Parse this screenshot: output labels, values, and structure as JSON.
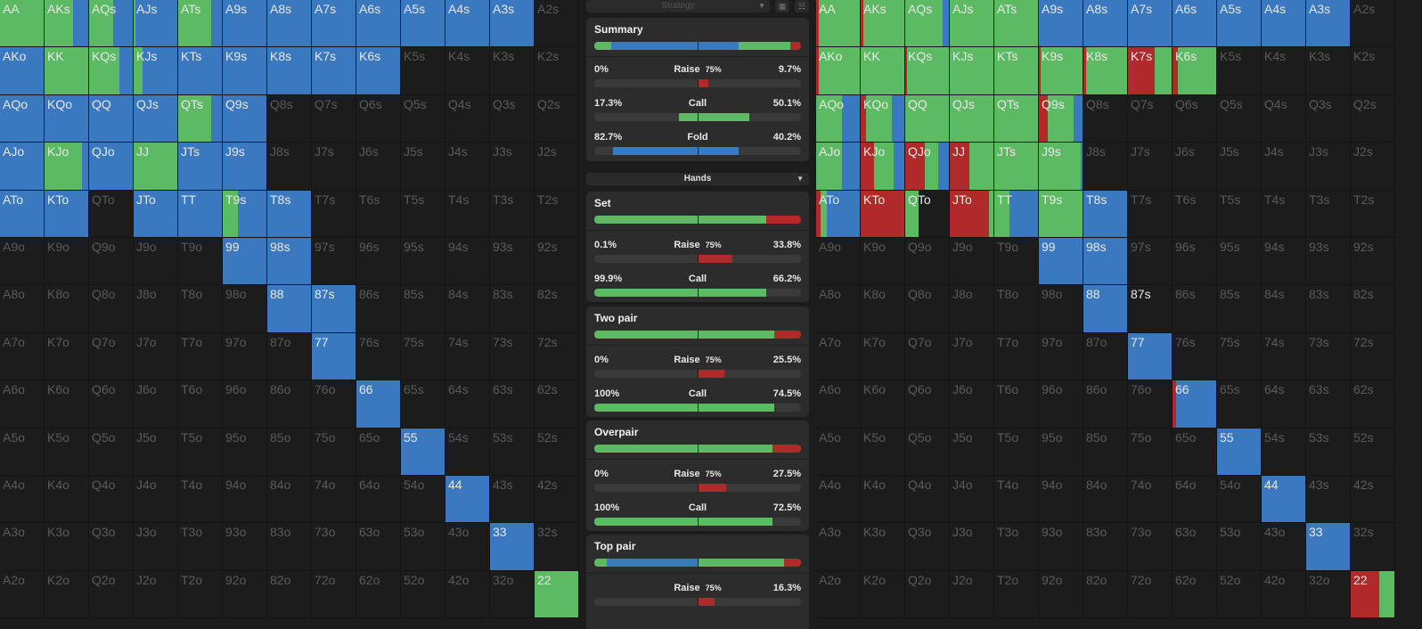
{
  "colors": {
    "raise": "#b02a2a",
    "call": "#5cba63",
    "fold": "#3a78c0",
    "empty": "#1c1c1c"
  },
  "toolbar": {
    "strategy_label": "Strategy",
    "hands_label": "Hands"
  },
  "left_grid": {
    "labels": [
      [
        "AA",
        "AKs",
        "AQs",
        "AJs",
        "ATs",
        "A9s",
        "A8s",
        "A7s",
        "A6s",
        "A5s",
        "A4s",
        "A3s",
        "A2s"
      ],
      [
        "AKo",
        "KK",
        "KQs",
        "KJs",
        "KTs",
        "K9s",
        "K8s",
        "K7s",
        "K6s",
        "K5s",
        "K4s",
        "K3s",
        "K2s"
      ],
      [
        "AQo",
        "KQo",
        "QQ",
        "QJs",
        "QTs",
        "Q9s",
        "Q8s",
        "Q7s",
        "Q6s",
        "Q5s",
        "Q4s",
        "Q3s",
        "Q2s"
      ],
      [
        "AJo",
        "KJo",
        "QJo",
        "JJ",
        "JTs",
        "J9s",
        "J8s",
        "J7s",
        "J6s",
        "J5s",
        "J4s",
        "J3s",
        "J2s"
      ],
      [
        "ATo",
        "KTo",
        "QTo",
        "JTo",
        "TT",
        "T9s",
        "T8s",
        "T7s",
        "T6s",
        "T5s",
        "T4s",
        "T3s",
        "T2s"
      ],
      [
        "A9o",
        "K9o",
        "Q9o",
        "J9o",
        "T9o",
        "99",
        "98s",
        "97s",
        "96s",
        "95s",
        "94s",
        "93s",
        "92s"
      ],
      [
        "A8o",
        "K8o",
        "Q8o",
        "J8o",
        "T8o",
        "98o",
        "88",
        "87s",
        "86s",
        "85s",
        "84s",
        "83s",
        "82s"
      ],
      [
        "A7o",
        "K7o",
        "Q7o",
        "J7o",
        "T7o",
        "97o",
        "87o",
        "77",
        "76s",
        "75s",
        "74s",
        "73s",
        "72s"
      ],
      [
        "A6o",
        "K6o",
        "Q6o",
        "J6o",
        "T6o",
        "96o",
        "86o",
        "76o",
        "66",
        "65s",
        "64s",
        "63s",
        "62s"
      ],
      [
        "A5o",
        "K5o",
        "Q5o",
        "J5o",
        "T5o",
        "95o",
        "85o",
        "75o",
        "65o",
        "55",
        "54s",
        "53s",
        "52s"
      ],
      [
        "A4o",
        "K4o",
        "Q4o",
        "J4o",
        "T4o",
        "94o",
        "84o",
        "74o",
        "64o",
        "54o",
        "44",
        "43s",
        "42s"
      ],
      [
        "A3o",
        "K3o",
        "Q3o",
        "J3o",
        "T3o",
        "93o",
        "83o",
        "73o",
        "63o",
        "53o",
        "43o",
        "33",
        "32s"
      ],
      [
        "A2o",
        "K2o",
        "Q2o",
        "J2o",
        "T2o",
        "92o",
        "82o",
        "72o",
        "62o",
        "52o",
        "42o",
        "32o",
        "22"
      ]
    ],
    "cells": {
      "AA": [
        0,
        1,
        0
      ],
      "AKs": [
        0,
        0.65,
        0.35
      ],
      "AQs": [
        0,
        0.55,
        0.45
      ],
      "AJs": [
        0,
        0.04,
        0.96
      ],
      "ATs": [
        0,
        0.75,
        0.25
      ],
      "A9s": [
        0,
        0,
        1
      ],
      "A8s": [
        0,
        0,
        1
      ],
      "A7s": [
        0,
        0,
        1
      ],
      "A6s": [
        0,
        0,
        1
      ],
      "A5s": [
        0,
        0,
        1
      ],
      "A4s": [
        0,
        0,
        1
      ],
      "A3s": [
        0,
        0,
        1
      ],
      "AKo": [
        0,
        0,
        1
      ],
      "KK": [
        0,
        1,
        0
      ],
      "KQs": [
        0,
        0.7,
        0.3
      ],
      "KJs": [
        0,
        0.2,
        0.8
      ],
      "KTs": [
        0,
        0,
        1
      ],
      "K9s": [
        0,
        0,
        1
      ],
      "K8s": [
        0,
        0,
        1
      ],
      "K7s": [
        0,
        0,
        1
      ],
      "K6s": [
        0,
        0,
        1
      ],
      "AQo": [
        0,
        0,
        1
      ],
      "KQo": [
        0,
        0,
        1
      ],
      "QQ": [
        0,
        0,
        1
      ],
      "QJs": [
        0,
        0,
        1
      ],
      "QTs": [
        0,
        0.75,
        0.25
      ],
      "Q9s": [
        0,
        0,
        1
      ],
      "AJo": [
        0,
        0,
        1
      ],
      "KJo": [
        0,
        0.85,
        0.15
      ],
      "QJo": [
        0,
        0,
        1
      ],
      "JJ": [
        0,
        1,
        0
      ],
      "JTs": [
        0,
        0,
        1
      ],
      "J9s": [
        0,
        0,
        1
      ],
      "ATo": [
        0,
        0,
        1
      ],
      "KTo": [
        0,
        0,
        1
      ],
      "JTo": [
        0,
        0,
        1
      ],
      "TT": [
        0,
        0,
        1
      ],
      "T9s": [
        0,
        0.35,
        0.65
      ],
      "T8s": [
        0,
        0,
        1
      ],
      "99": [
        0,
        0,
        1
      ],
      "98s": [
        0,
        0,
        1
      ],
      "88": [
        0,
        0,
        1
      ],
      "87s": [
        0,
        0,
        1
      ],
      "77": [
        0,
        0,
        1
      ],
      "66": [
        0,
        0,
        1
      ],
      "55": [
        0,
        0,
        1
      ],
      "44": [
        0,
        0,
        1
      ],
      "33": [
        0,
        0,
        1
      ],
      "22": [
        0,
        1,
        0
      ]
    }
  },
  "right_grid": {
    "labels_ref": "same as left_grid.labels",
    "cells": {
      "AA": [
        0.06,
        0.94,
        0
      ],
      "AKs": [
        0.06,
        0.94,
        0
      ],
      "AQs": [
        0,
        0.85,
        0.15
      ],
      "AJs": [
        0,
        1,
        0
      ],
      "ATs": [
        0,
        1,
        0
      ],
      "A9s": [
        0,
        0,
        1
      ],
      "A8s": [
        0,
        0,
        1
      ],
      "A7s": [
        0,
        0,
        1
      ],
      "A6s": [
        0,
        0,
        1
      ],
      "A5s": [
        0,
        0,
        1
      ],
      "A4s": [
        0,
        0,
        1
      ],
      "A3s": [
        0,
        0,
        1
      ],
      "AKo": [
        0.06,
        0.94,
        0
      ],
      "KK": [
        0,
        1,
        0
      ],
      "KQs": [
        0.04,
        0.96,
        0
      ],
      "KJs": [
        0,
        1,
        0
      ],
      "KTs": [
        0,
        1,
        0
      ],
      "K9s": [
        0.04,
        0.96,
        0
      ],
      "K8s": [
        0.06,
        0.94,
        0
      ],
      "K7s": [
        0.62,
        0.38,
        0
      ],
      "K6s": [
        0.12,
        0.88,
        0
      ],
      "AQo": [
        0,
        0.6,
        0.4
      ],
      "KQo": [
        0.12,
        0.6,
        0.28
      ],
      "QQ": [
        0,
        1,
        0
      ],
      "QJs": [
        0,
        1,
        0
      ],
      "QTs": [
        0,
        1,
        0
      ],
      "Q9s": [
        0.2,
        0.6,
        0.2
      ],
      "AJo": [
        0,
        0.6,
        0.4
      ],
      "KJo": [
        0.3,
        0.45,
        0.25
      ],
      "QJo": [
        0.45,
        0.3,
        0.25
      ],
      "JJ": [
        0.45,
        0.55,
        0
      ],
      "JTs": [
        0,
        1,
        0
      ],
      "J9s": [
        0,
        0.95,
        0.05
      ],
      "ATo": [
        0.1,
        0.15,
        0.75
      ],
      "KTo": [
        1,
        0,
        0
      ],
      "QTo": [
        0,
        0.3,
        0
      ],
      "JTo": [
        0.9,
        0.1,
        0
      ],
      "TT": [
        0,
        0.35,
        0.65
      ],
      "T9s": [
        0,
        1,
        0
      ],
      "T8s": [
        0,
        0,
        1
      ],
      "99": [
        0,
        0,
        1
      ],
      "98s": [
        0,
        0,
        1
      ],
      "88": [
        0,
        0,
        1
      ],
      "87s": [
        0,
        0,
        0
      ],
      "77": [
        0,
        0,
        1
      ],
      "66": [
        0.08,
        0,
        0.92
      ],
      "55": [
        0,
        0,
        1
      ],
      "44": [
        0,
        0,
        1
      ],
      "33": [
        0,
        0,
        1
      ],
      "22": [
        0.65,
        0.35,
        0
      ]
    }
  },
  "summary": {
    "title": "Summary",
    "bar": [
      {
        "color": "#5cba63",
        "value": 0.08
      },
      {
        "color": "#3a78c0",
        "value": 0.42
      },
      {
        "color": "#3a78c0",
        "value": 0.2
      },
      {
        "color": "#5cba63",
        "value": 0.25
      },
      {
        "color": "#b02a2a",
        "value": 0.05
      }
    ],
    "rows": [
      {
        "left": "0%",
        "label": "Raise",
        "size": "75%",
        "right": "9.7%",
        "color": "#b02a2a",
        "from": 0.5,
        "to": 0.55
      },
      {
        "left": "17.3%",
        "label": "Call",
        "size": "",
        "right": "50.1%",
        "color": "#5cba63",
        "from": 0.41,
        "to": 0.75
      },
      {
        "left": "82.7%",
        "label": "Fold",
        "size": "",
        "right": "40.2%",
        "color": "#3a78c0",
        "from": 0.09,
        "to": 0.7
      }
    ]
  },
  "panels": [
    {
      "title": "Set",
      "bar": [
        {
          "color": "#5cba63",
          "value": 0.83
        },
        {
          "color": "#b02a2a",
          "value": 0.17
        }
      ],
      "rows": [
        {
          "left": "0.1%",
          "label": "Raise",
          "size": "75%",
          "right": "33.8%",
          "color": "#b02a2a",
          "from": 0.5,
          "to": 0.67
        },
        {
          "left": "99.9%",
          "label": "Call",
          "size": "",
          "right": "66.2%",
          "color": "#5cba63",
          "from": 0.0,
          "to": 0.83
        }
      ]
    },
    {
      "title": "Two pair",
      "bar": [
        {
          "color": "#5cba63",
          "value": 0.87
        },
        {
          "color": "#b02a2a",
          "value": 0.13
        }
      ],
      "rows": [
        {
          "left": "0%",
          "label": "Raise",
          "size": "75%",
          "right": "25.5%",
          "color": "#b02a2a",
          "from": 0.5,
          "to": 0.63
        },
        {
          "left": "100%",
          "label": "Call",
          "size": "",
          "right": "74.5%",
          "color": "#5cba63",
          "from": 0.0,
          "to": 0.87
        }
      ]
    },
    {
      "title": "Overpair",
      "bar": [
        {
          "color": "#5cba63",
          "value": 0.86
        },
        {
          "color": "#b02a2a",
          "value": 0.14
        }
      ],
      "rows": [
        {
          "left": "0%",
          "label": "Raise",
          "size": "75%",
          "right": "27.5%",
          "color": "#b02a2a",
          "from": 0.5,
          "to": 0.64
        },
        {
          "left": "100%",
          "label": "Call",
          "size": "",
          "right": "72.5%",
          "color": "#5cba63",
          "from": 0.0,
          "to": 0.86
        }
      ]
    },
    {
      "title": "Top pair",
      "bar": [
        {
          "color": "#5cba63",
          "value": 0.06
        },
        {
          "color": "#3a78c0",
          "value": 0.44
        },
        {
          "color": "#5cba63",
          "value": 0.42
        },
        {
          "color": "#b02a2a",
          "value": 0.08
        }
      ],
      "rows": [
        {
          "left": "",
          "label": "Raise",
          "size": "75%",
          "right": "16.3%",
          "color": "#b02a2a",
          "from": 0.5,
          "to": 0.58
        }
      ]
    }
  ]
}
